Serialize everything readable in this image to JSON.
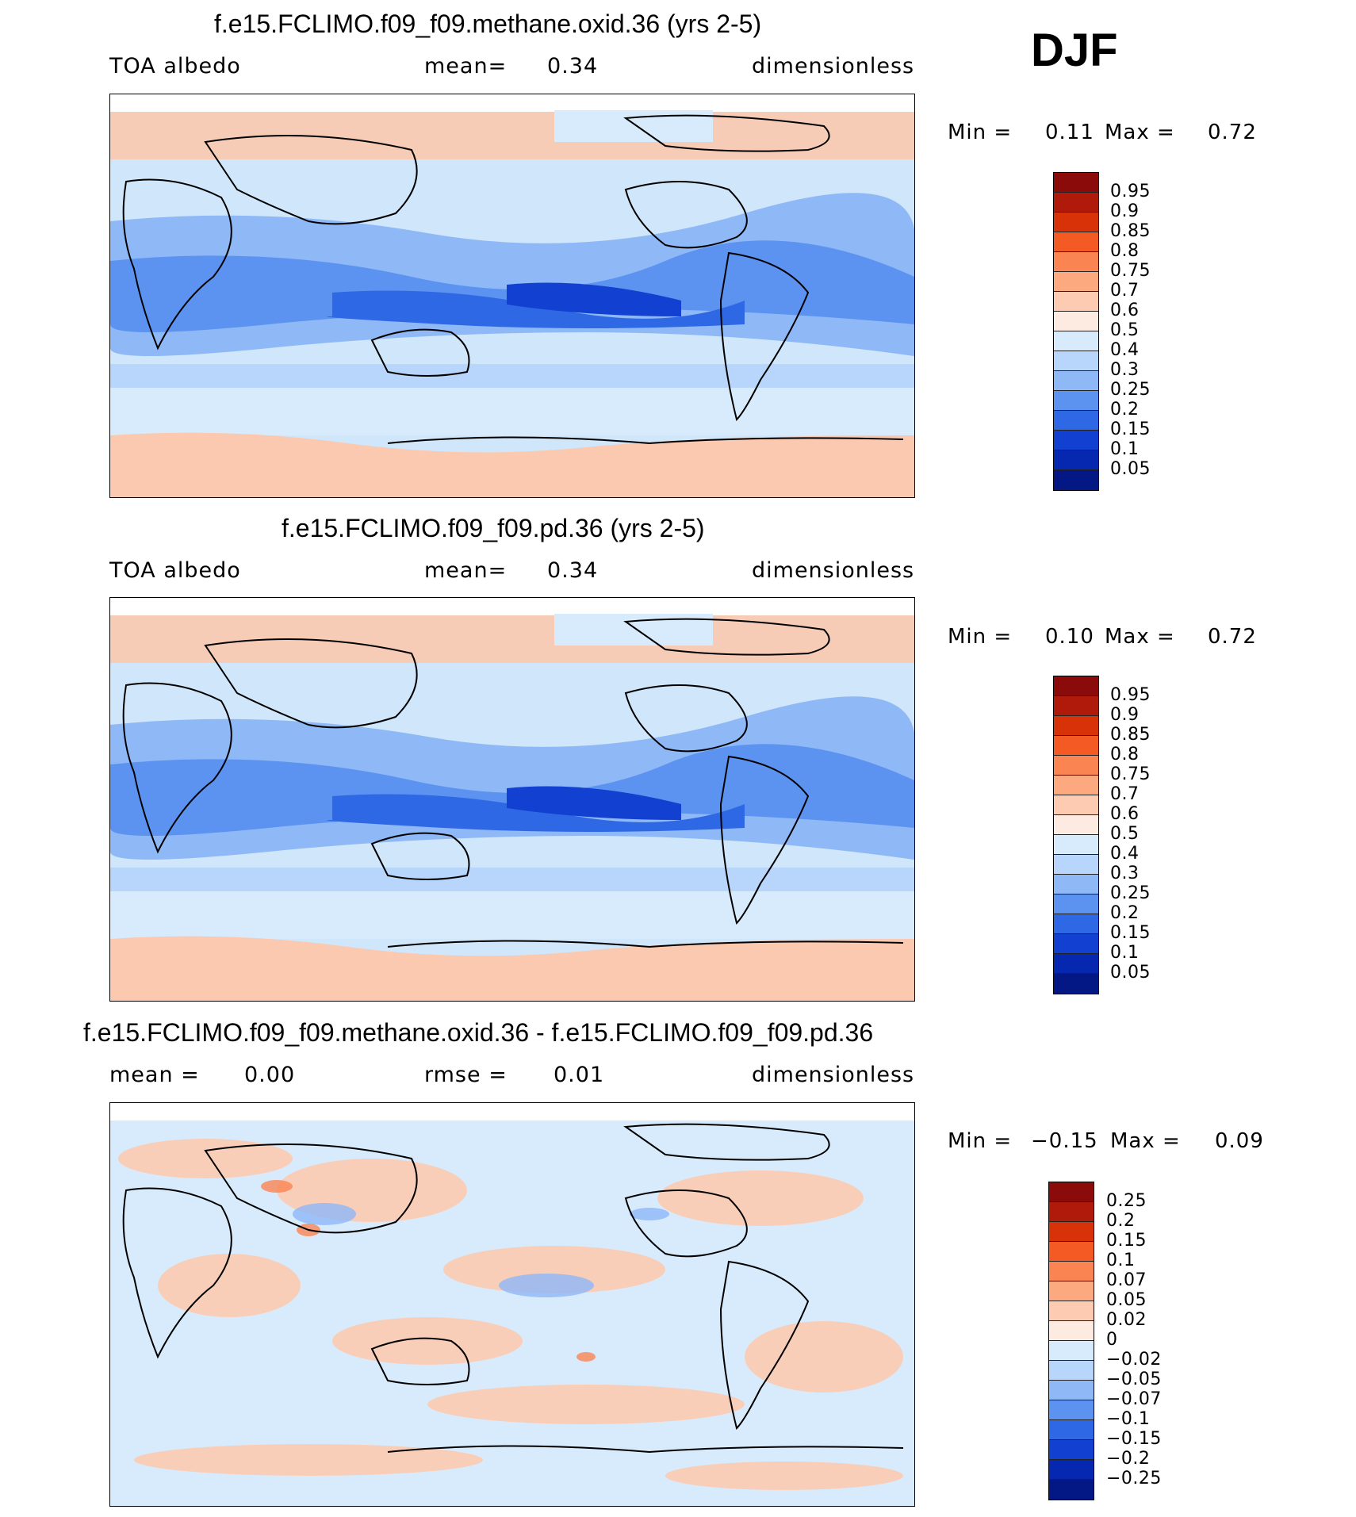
{
  "season": "DJF",
  "panels": [
    {
      "title": "f.e15.FCLIMO.f09_f09.methane.oxid.36 (yrs 2-5)",
      "left": "TOA  albedo",
      "center_label": "mean=",
      "center_value": "0.34",
      "units": "dimensionless",
      "min_label": "Min  =",
      "min_value": "0.11",
      "max_label": "Max  =",
      "max_value": "0.72",
      "colorbar": [
        "0.95",
        "0.9",
        "0.85",
        "0.8",
        "0.75",
        "0.7",
        "0.6",
        "0.5",
        "0.4",
        "0.3",
        "0.25",
        "0.2",
        "0.15",
        "0.1",
        "0.05"
      ]
    },
    {
      "title": "f.e15.FCLIMO.f09_f09.pd.36 (yrs 2-5)",
      "left": "TOA  albedo",
      "center_label": "mean=",
      "center_value": "0.34",
      "units": "dimensionless",
      "min_label": "Min  =",
      "min_value": "0.10",
      "max_label": "Max  =",
      "max_value": "0.72",
      "colorbar": [
        "0.95",
        "0.9",
        "0.85",
        "0.8",
        "0.75",
        "0.7",
        "0.6",
        "0.5",
        "0.4",
        "0.3",
        "0.25",
        "0.2",
        "0.15",
        "0.1",
        "0.05"
      ]
    },
    {
      "title": "f.e15.FCLIMO.f09_f09.methane.oxid.36 - f.e15.FCLIMO.f09_f09.pd.36",
      "left_label": "mean  =",
      "left_value": "0.00",
      "center_label": "rmse  =",
      "center_value": "0.01",
      "units": "dimensionless",
      "min_label": "Min  =",
      "min_value": "−0.15",
      "max_label": "Max  =",
      "max_value": "0.09",
      "colorbar": [
        "0.25",
        "0.2",
        "0.15",
        "0.1",
        "0.07",
        "0.05",
        "0.02",
        "0",
        "−0.02",
        "−0.05",
        "−0.07",
        "−0.1",
        "−0.15",
        "−0.2",
        "−0.25"
      ]
    }
  ],
  "colors": {
    "abs_scale": [
      "#8b0b0b",
      "#b01a0a",
      "#d83208",
      "#f45a24",
      "#fa8452",
      "#fca980",
      "#fdcbb1",
      "#fdeae0",
      "#d8ebfc",
      "#b8d6fb",
      "#8fb8f7",
      "#5d93f0",
      "#2f68e4",
      "#1240d0",
      "#0628b0",
      "#031785"
    ],
    "diff_scale": [
      "#8b0b0b",
      "#b01a0a",
      "#d83208",
      "#f45a24",
      "#fa8452",
      "#fca980",
      "#fdcbb1",
      "#fdeae0",
      "#d8ebfc",
      "#b8d6fb",
      "#8fb8f7",
      "#5d93f0",
      "#2f68e4",
      "#1240d0",
      "#0628b0",
      "#031785"
    ]
  }
}
